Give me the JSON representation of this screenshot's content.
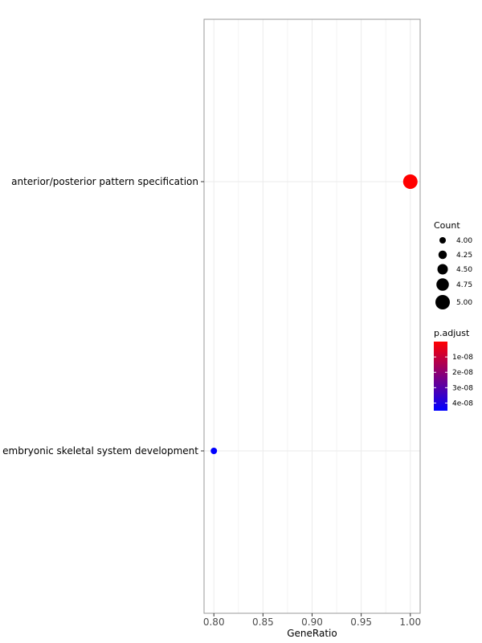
{
  "chart_data": {
    "type": "scatter",
    "title": "",
    "xlabel": "GeneRatio",
    "ylabel": "",
    "xlim": [
      0.79,
      1.01
    ],
    "x_ticks": [
      0.8,
      0.85,
      0.9,
      0.95,
      1.0
    ],
    "x_tick_labels": [
      "0.80",
      "0.85",
      "0.90",
      "0.95",
      "1.00"
    ],
    "categories": [
      "anterior/posterior pattern specification",
      "embryonic skeletal system development"
    ],
    "points": [
      {
        "category": "anterior/posterior pattern specification",
        "x": 1.0,
        "count": 5,
        "p_adjust": 0.0
      },
      {
        "category": "embryonic skeletal system development",
        "x": 0.8,
        "count": 4,
        "p_adjust": 4.5e-08
      }
    ],
    "grid": true,
    "legend_placement": "right",
    "size_legend": {
      "title": "Count",
      "values": [
        4.0,
        4.25,
        4.5,
        4.75,
        5.0
      ],
      "labels": [
        "4.00",
        "4.25",
        "4.50",
        "4.75",
        "5.00"
      ]
    },
    "color_legend": {
      "title": "p.adjust",
      "range": [
        0.0,
        4.5e-08
      ],
      "ticks": [
        1e-08,
        2e-08,
        3e-08,
        4e-08
      ],
      "labels": [
        "1e-08",
        "2e-08",
        "3e-08",
        "4e-08"
      ],
      "low_color": "#ff0000",
      "high_color": "#0000ff"
    }
  }
}
